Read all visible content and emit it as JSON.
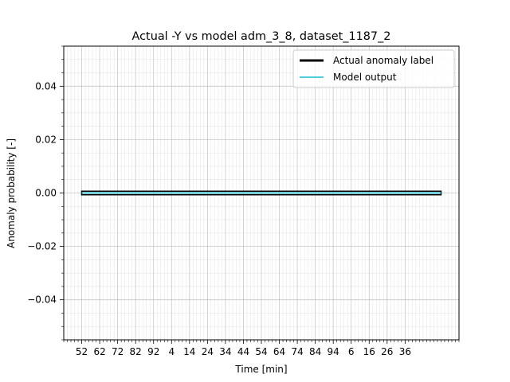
{
  "chart_data": {
    "type": "line",
    "title": "Actual -Y vs model adm_3_8, dataset_1187_2",
    "xlabel": "Time [min]",
    "ylabel": "Anomaly probability [-]",
    "ylim": [
      -0.055,
      0.055
    ],
    "y_ticks": [
      -0.04,
      -0.02,
      0.0,
      0.02,
      0.04
    ],
    "y_tick_labels": [
      "−0.04",
      "−0.02",
      "0.00",
      "0.02",
      "0.04"
    ],
    "x_tick_labels": [
      "52",
      "62",
      "72",
      "82",
      "92",
      "4",
      "14",
      "24",
      "34",
      "44",
      "54",
      "64",
      "74",
      "84",
      "94",
      "6",
      "16",
      "26",
      "36"
    ],
    "x": [
      0,
      200
    ],
    "xlim": [
      -10,
      210
    ],
    "x_tick_step": 10,
    "grid": true,
    "legend_position": "top-right",
    "series": [
      {
        "name": "Actual anomaly label",
        "values": [
          0,
          0
        ],
        "color": "#000000"
      },
      {
        "name": "Model output",
        "values": [
          0,
          0
        ],
        "color": "#17becf"
      }
    ]
  }
}
